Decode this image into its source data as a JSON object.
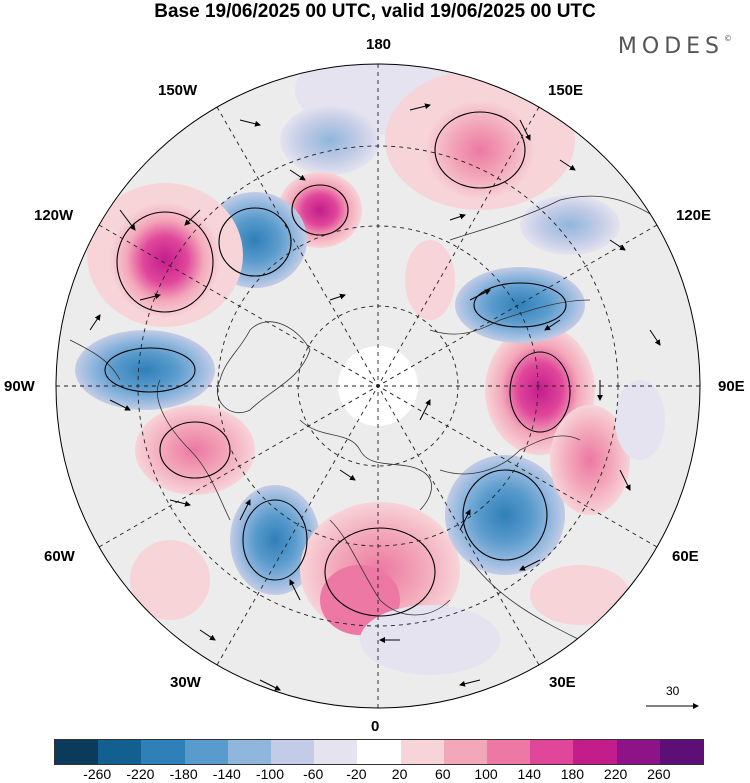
{
  "title": "Base 19/06/2025 00 UTC, valid 19/06/2025 00 UTC",
  "brand": "MODES",
  "brand_mark": "©",
  "lon_labels": {
    "top": "180",
    "bottom": "0",
    "left": "90W",
    "right": "90E",
    "upper_left_1": "150W",
    "upper_left_2": "120W",
    "upper_right_1": "150E",
    "upper_right_2": "120E",
    "lower_left_1": "60W",
    "lower_left_2": "30W",
    "lower_right_1": "60E",
    "lower_right_2": "30E"
  },
  "reference_vector": {
    "label": "30"
  },
  "colorbar": {
    "colors": [
      "#0b3a5c",
      "#12608f",
      "#2f7fb8",
      "#5a9bcd",
      "#8fb6dd",
      "#c3cce6",
      "#e5e3f0",
      "#ffffff",
      "#f7d4d8",
      "#f3a8b9",
      "#ec78a3",
      "#e0469a",
      "#c31d8c",
      "#8e1388",
      "#5e0f77"
    ],
    "ticks": [
      "-260",
      "-220",
      "-180",
      "-140",
      "-100",
      "-60",
      "-20",
      "20",
      "60",
      "100",
      "140",
      "180",
      "220",
      "260"
    ]
  }
}
